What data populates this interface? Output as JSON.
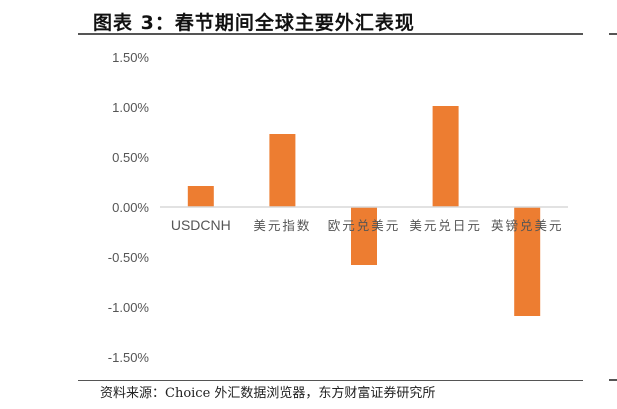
{
  "title": "图表 3：春节期间全球主要外汇表现",
  "source": "资料来源：Choice 外汇数据浏览器，东方财富证券研究所",
  "chart_data": {
    "type": "bar",
    "categories": [
      "USDCNH",
      "美元指数",
      "欧元兑美元",
      "美元兑日元",
      "英镑兑美元"
    ],
    "values": [
      0.21,
      0.73,
      -0.58,
      1.01,
      -1.09
    ],
    "yticks": [
      "1.50%",
      "1.00%",
      "0.50%",
      "0.00%",
      "-0.50%",
      "-1.00%",
      "-1.50%"
    ],
    "ylim": [
      -1.5,
      1.5
    ],
    "unit": "%",
    "grid": false,
    "bar_color": "#ED7D31",
    "xlabel": "",
    "ylabel": ""
  }
}
